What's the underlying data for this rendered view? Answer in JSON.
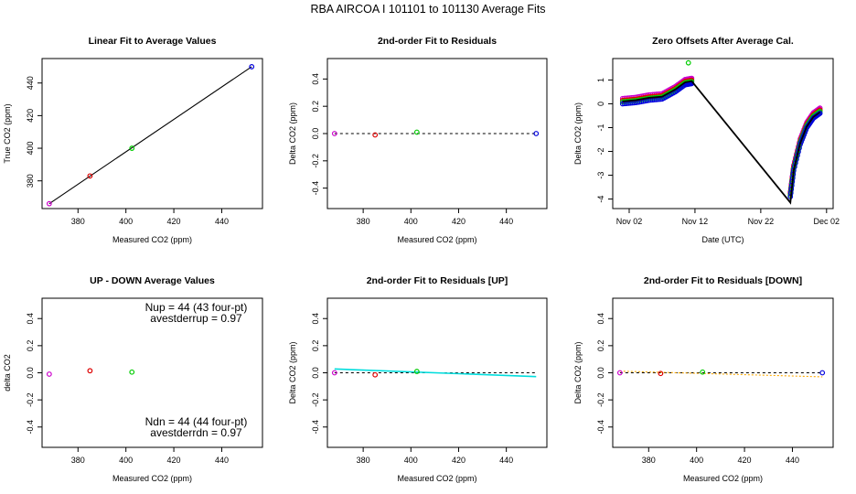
{
  "suptitle": "RBA   AIRCOA I   101101 to 101130   Average Fits",
  "colors": {
    "axis": "#000000",
    "fit_line": "#000000",
    "purple": "#cc00cc",
    "red": "#dd0000",
    "green": "#00cc00",
    "blue": "#0000dd",
    "cyan": "#00dddd",
    "orange": "#ffaa00"
  },
  "chart_data": [
    {
      "id": "p1",
      "type": "scatter",
      "title": "Linear Fit to Average Values",
      "xlabel": "Measured CO2 (ppm)",
      "ylabel": "True CO2 (ppm)",
      "xlim": [
        365,
        457
      ],
      "ylim": [
        363,
        455
      ],
      "xticks": [
        380,
        400,
        420,
        440
      ],
      "xtick_labels": [
        "380",
        "400",
        "420",
        "440"
      ],
      "yticks": [
        380,
        400,
        420,
        440
      ],
      "ytick_labels": [
        "380",
        "400",
        "420",
        "440"
      ],
      "points": [
        {
          "x": 368,
          "y": 366,
          "color": "purple"
        },
        {
          "x": 385,
          "y": 383,
          "color": "red"
        },
        {
          "x": 402.5,
          "y": 400,
          "color": "green"
        },
        {
          "x": 452.5,
          "y": 450,
          "color": "blue"
        }
      ],
      "lines": [
        {
          "x": [
            368,
            452.5
          ],
          "y": [
            366,
            450
          ],
          "color": "fit_line"
        }
      ]
    },
    {
      "id": "p2",
      "type": "scatter",
      "title": "2nd-order Fit to Residuals",
      "xlabel": "Measured CO2 (ppm)",
      "ylabel": "Delta CO2 (ppm)",
      "xlim": [
        365,
        457
      ],
      "ylim": [
        -0.55,
        0.55
      ],
      "xticks": [
        380,
        400,
        420,
        440
      ],
      "xtick_labels": [
        "380",
        "400",
        "420",
        "440"
      ],
      "yticks": [
        -0.4,
        -0.2,
        0.0,
        0.2,
        0.4
      ],
      "ytick_labels": [
        "-0.4",
        "-0.2",
        "0.0",
        "0.2",
        "0.4"
      ],
      "points": [
        {
          "x": 368,
          "y": 0.0,
          "color": "purple"
        },
        {
          "x": 385,
          "y": -0.01,
          "color": "red"
        },
        {
          "x": 402.5,
          "y": 0.01,
          "color": "green"
        },
        {
          "x": 452.5,
          "y": 0.0,
          "color": "blue"
        }
      ],
      "lines": [
        {
          "x": [
            368,
            452.5
          ],
          "y": [
            0.0,
            0.0
          ],
          "color": "fit_line",
          "dash": true
        }
      ]
    },
    {
      "id": "p3",
      "type": "line",
      "title": "Zero Offsets After Average Cal.",
      "xlabel": "Date (UTC)",
      "ylabel": "Delta CO2 (ppm)",
      "xlim": [
        -1.5,
        32
      ],
      "ylim": [
        -4.4,
        1.9
      ],
      "xticks": [
        1,
        11,
        21,
        31
      ],
      "xtick_labels": [
        "Nov 02",
        "Nov 12",
        "Nov 22",
        "Dec 02"
      ],
      "yticks": [
        -4,
        -3,
        -2,
        -1,
        0,
        1
      ],
      "ytick_labels": [
        "-4",
        "-3",
        "-2",
        "-1",
        "0",
        "1"
      ],
      "series": [
        {
          "name": "purple",
          "color": "purple",
          "offset": 0.12
        },
        {
          "name": "red",
          "color": "red",
          "offset": 0.04
        },
        {
          "name": "green",
          "color": "green",
          "offset": -0.02
        },
        {
          "name": "blue",
          "color": "blue",
          "offset": -0.1
        }
      ],
      "segments": [
        {
          "x": [
            0,
            2,
            4,
            6,
            8,
            9.5,
            10.5
          ],
          "y": [
            0.1,
            0.15,
            0.25,
            0.3,
            0.6,
            0.9,
            0.95
          ]
        },
        {
          "x": [
            25.5,
            26,
            27,
            28,
            29,
            30
          ],
          "y": [
            -3.8,
            -2.7,
            -1.6,
            -0.9,
            -0.5,
            -0.3
          ]
        }
      ],
      "extra_points": [
        {
          "x": 10,
          "y": 1.72,
          "color": "green"
        }
      ],
      "fit": {
        "x": [
          0,
          2,
          4,
          6,
          8,
          9.5,
          10.5,
          25.5,
          26,
          27,
          28,
          29,
          30
        ],
        "y": [
          0.1,
          0.15,
          0.25,
          0.3,
          0.6,
          0.9,
          0.95,
          -4.15,
          -2.8,
          -1.65,
          -0.95,
          -0.55,
          -0.35
        ],
        "color": "fit_line"
      }
    },
    {
      "id": "p4",
      "type": "scatter",
      "title": "UP - DOWN Average Values",
      "xlabel": "Measured CO2 (ppm)",
      "ylabel": "delta CO2",
      "xlim": [
        365,
        457
      ],
      "ylim": [
        -0.55,
        0.55
      ],
      "xticks": [
        380,
        400,
        420,
        440
      ],
      "xtick_labels": [
        "380",
        "400",
        "420",
        "440"
      ],
      "yticks": [
        -0.4,
        -0.2,
        0.0,
        0.2,
        0.4
      ],
      "ytick_labels": [
        "-0.4",
        "-0.2",
        "0.0",
        "0.2",
        "0.4"
      ],
      "points": [
        {
          "x": 368,
          "y": -0.01,
          "color": "purple"
        },
        {
          "x": 385,
          "y": 0.015,
          "color": "red"
        },
        {
          "x": 402.5,
          "y": 0.005,
          "color": "green"
        }
      ],
      "annotations": {
        "nup": "Nup = 44 (43 four-pt)",
        "avestderrup": "avestderrup =  0.97",
        "ndn": "Ndn = 44 (44 four-pt)",
        "avestderrdn": "avestderrdn =  0.97"
      }
    },
    {
      "id": "p5",
      "type": "scatter",
      "title": "2nd-order Fit to Residuals [UP]",
      "xlabel": "Measured CO2 (ppm)",
      "ylabel": "Delta CO2 (ppm)",
      "xlim": [
        365,
        457
      ],
      "ylim": [
        -0.55,
        0.55
      ],
      "xticks": [
        380,
        400,
        420,
        440
      ],
      "xtick_labels": [
        "380",
        "400",
        "420",
        "440"
      ],
      "yticks": [
        -0.4,
        -0.2,
        0.0,
        0.2,
        0.4
      ],
      "ytick_labels": [
        "-0.4",
        "-0.2",
        "0.0",
        "0.2",
        "0.4"
      ],
      "points": [
        {
          "x": 368,
          "y": 0.0,
          "color": "purple"
        },
        {
          "x": 385,
          "y": -0.015,
          "color": "red"
        },
        {
          "x": 402.5,
          "y": 0.01,
          "color": "green"
        }
      ],
      "lines": [
        {
          "x": [
            368,
            452.5
          ],
          "y": [
            0.0,
            0.0
          ],
          "color": "fit_line",
          "dash": true
        },
        {
          "x": [
            368,
            452.5
          ],
          "y": [
            0.028,
            -0.028
          ],
          "color": "cyan"
        }
      ]
    },
    {
      "id": "p6",
      "type": "scatter",
      "title": "2nd-order Fit to Residuals [DOWN]",
      "xlabel": "Measured CO2 (ppm)",
      "ylabel": "Delta CO2 (ppm)",
      "xlim": [
        365,
        457
      ],
      "ylim": [
        -0.55,
        0.55
      ],
      "xticks": [
        380,
        400,
        420,
        440
      ],
      "xtick_labels": [
        "380",
        "400",
        "420",
        "440"
      ],
      "yticks": [
        -0.4,
        -0.2,
        0.0,
        0.2,
        0.4
      ],
      "ytick_labels": [
        "-0.4",
        "-0.2",
        "0.0",
        "0.2",
        "0.4"
      ],
      "points": [
        {
          "x": 368,
          "y": 0.0,
          "color": "purple"
        },
        {
          "x": 385,
          "y": -0.005,
          "color": "red"
        },
        {
          "x": 402.5,
          "y": 0.005,
          "color": "green"
        },
        {
          "x": 452.5,
          "y": 0.0,
          "color": "blue"
        }
      ],
      "lines": [
        {
          "x": [
            368,
            452.5
          ],
          "y": [
            0.0,
            0.0
          ],
          "color": "fit_line",
          "dash": true
        },
        {
          "x": [
            368,
            452.5
          ],
          "y": [
            0.012,
            -0.03
          ],
          "color": "orange",
          "dash": true
        }
      ]
    }
  ]
}
